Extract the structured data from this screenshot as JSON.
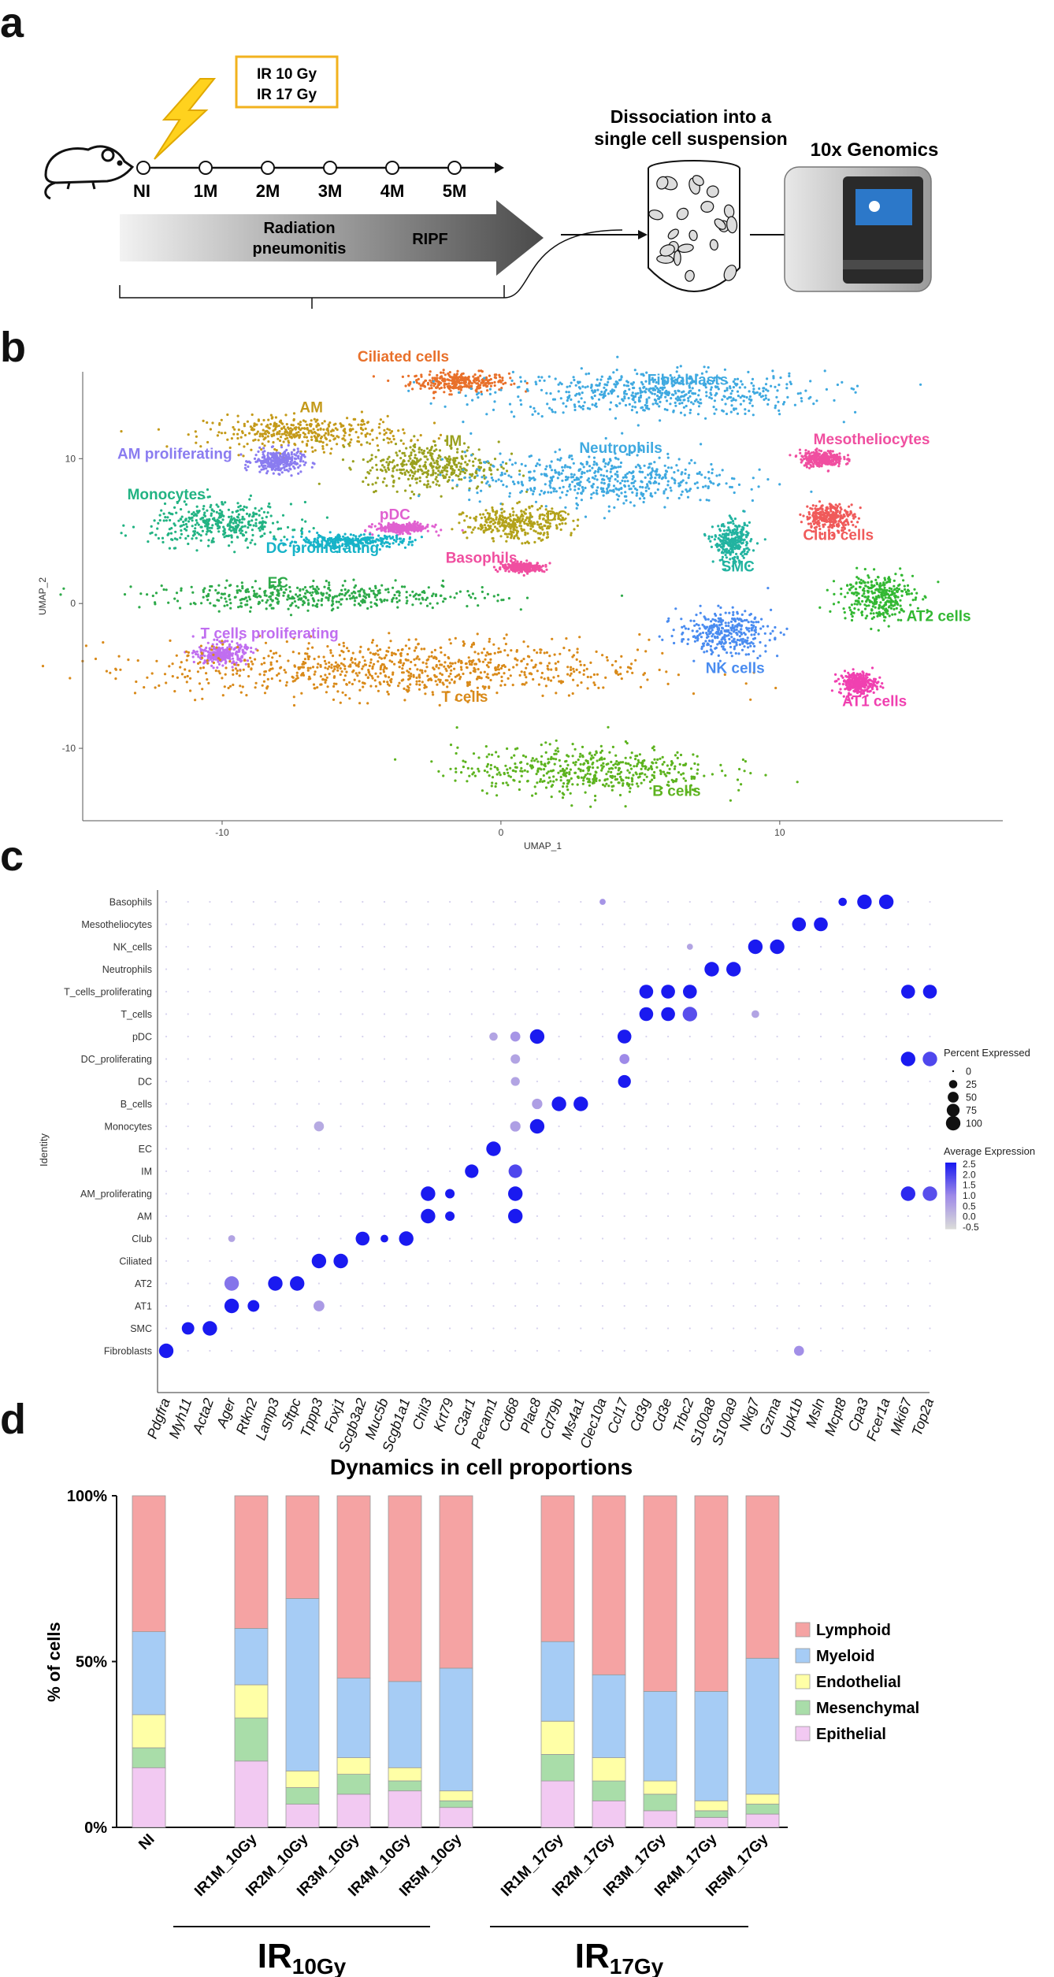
{
  "panels": [
    "a",
    "b",
    "c",
    "d"
  ],
  "panel_a": {
    "doses": [
      "IR 10 Gy",
      "IR 17 Gy"
    ],
    "timeline": [
      "NI",
      "1M",
      "2M",
      "3M",
      "4M",
      "5M"
    ],
    "arrow_texts": [
      "Radiation",
      "pneumonitis",
      "RIPF"
    ],
    "dissociation": [
      "Dissociation into a",
      "single cell suspension"
    ],
    "platform": "10x Genomics"
  },
  "panel_b": {
    "chart_data": {
      "type": "scatter",
      "title": "",
      "xlabel": "UMAP_1",
      "ylabel": "UMAP_2",
      "xticks": [
        -10,
        0,
        10
      ],
      "yticks": [
        -10,
        0,
        10
      ],
      "xlim": [
        -15,
        18
      ],
      "ylim": [
        -15,
        16
      ],
      "clusters": [
        {
          "name": "Ciliated cells",
          "color": "#E8702A",
          "center": [
            -1.5,
            15.3
          ],
          "spread": [
            1.6,
            0.6
          ]
        },
        {
          "name": "Fibroblasts",
          "color": "#3FA9E0",
          "center": [
            5.5,
            14.5
          ],
          "spread": [
            5.5,
            1.4
          ]
        },
        {
          "name": "AM",
          "color": "#C49A1A",
          "center": [
            -7,
            11.8
          ],
          "spread": [
            3.2,
            1.0
          ]
        },
        {
          "name": "AM proliferating",
          "color": "#8A7CF0",
          "center": [
            -8.0,
            9.8
          ],
          "spread": [
            0.8,
            0.7
          ]
        },
        {
          "name": "IM",
          "color": "#9AA11F",
          "center": [
            -2.5,
            9.5
          ],
          "spread": [
            2.2,
            1.5
          ]
        },
        {
          "name": "Neutrophils",
          "color": "#3FA9E0",
          "center": [
            3.5,
            8.6
          ],
          "spread": [
            4.2,
            1.6
          ]
        },
        {
          "name": "Mesotheliocytes",
          "color": "#F04FA0",
          "center": [
            11.5,
            10.0
          ],
          "spread": [
            0.7,
            0.5
          ]
        },
        {
          "name": "Monocytes",
          "color": "#22B383",
          "center": [
            -10.0,
            5.5
          ],
          "spread": [
            2.3,
            1.3
          ]
        },
        {
          "name": "pDC",
          "color": "#E060D0",
          "center": [
            -3.5,
            5.2
          ],
          "spread": [
            0.9,
            0.3
          ]
        },
        {
          "name": "DC",
          "color": "#B3A21A",
          "center": [
            0.5,
            5.5
          ],
          "spread": [
            1.6,
            1.0
          ]
        },
        {
          "name": "Club cells",
          "color": "#F05A5A",
          "center": [
            11.8,
            6.0
          ],
          "spread": [
            0.8,
            0.8
          ]
        },
        {
          "name": "DC proliferating",
          "color": "#17B3C8",
          "center": [
            -5.5,
            4.3
          ],
          "spread": [
            2.0,
            0.4
          ]
        },
        {
          "name": "Basophils",
          "color": "#F04FA0",
          "center": [
            0.8,
            2.5
          ],
          "spread": [
            0.7,
            0.3
          ]
        },
        {
          "name": "SMC",
          "color": "#22B3A0",
          "center": [
            8.3,
            4.2
          ],
          "spread": [
            0.6,
            1.2
          ]
        },
        {
          "name": "EC",
          "color": "#2EAA4A",
          "center": [
            -6.5,
            0.5
          ],
          "spread": [
            5.5,
            0.8
          ]
        },
        {
          "name": "AT2 cells",
          "color": "#33B833",
          "center": [
            13.5,
            0.5
          ],
          "spread": [
            1.2,
            1.5
          ]
        },
        {
          "name": "T cells proliferating",
          "color": "#C06EF0",
          "center": [
            -10.0,
            -3.5
          ],
          "spread": [
            0.8,
            0.7
          ]
        },
        {
          "name": "NK cells",
          "color": "#4A8CF0",
          "center": [
            8.0,
            -2.0
          ],
          "spread": [
            1.5,
            1.3
          ]
        },
        {
          "name": "T cells",
          "color": "#D98A1A",
          "center": [
            -3.5,
            -4.5
          ],
          "spread": [
            8.0,
            1.8
          ]
        },
        {
          "name": "AT1 cells",
          "color": "#F040B0",
          "center": [
            12.8,
            -5.5
          ],
          "spread": [
            0.6,
            0.7
          ]
        },
        {
          "name": "B cells",
          "color": "#5DB31F",
          "center": [
            3.0,
            -11.5
          ],
          "spread": [
            4.2,
            1.5
          ]
        }
      ]
    }
  },
  "panel_c": {
    "chart_data": {
      "type": "dotplot",
      "ylabel": "Identity",
      "genes": [
        "Pdgfra",
        "Myh11",
        "Acta2",
        "Ager",
        "Rtkn2",
        "Lamp3",
        "Sftpc",
        "Tppp3",
        "Foxj1",
        "Scgb3a2",
        "Muc5b",
        "Scgb1a1",
        "Chil3",
        "Krt79",
        "C3ar1",
        "Pecam1",
        "Cd68",
        "Plac8",
        "Cd79b",
        "Ms4a1",
        "Clec10a",
        "Ccl17",
        "Cd3g",
        "Cd3e",
        "Trbc2",
        "S100a8",
        "S100a9",
        "Nkg7",
        "Gzma",
        "Upk1b",
        "Msln",
        "Mcpt8",
        "Cpa3",
        "Fcer1a",
        "Mki67",
        "Top2a"
      ],
      "identities": [
        "Basophils",
        "Mesotheliocytes",
        "NK_cells",
        "Neutrophils",
        "T_cells_proliferating",
        "T_cells",
        "pDC",
        "DC_proliferating",
        "DC",
        "B_cells",
        "Monocytes",
        "EC",
        "IM",
        "AM_proliferating",
        "AM",
        "Club",
        "Ciliated",
        "AT2",
        "AT1",
        "SMC",
        "Fibroblasts"
      ],
      "dots": [
        {
          "identity": "Basophils",
          "gene": "Mcpt8",
          "pct": 25,
          "avg": 2.5
        },
        {
          "identity": "Basophils",
          "gene": "Cpa3",
          "pct": 100,
          "avg": 2.5
        },
        {
          "identity": "Basophils",
          "gene": "Fcer1a",
          "pct": 100,
          "avg": 2.5
        },
        {
          "identity": "Basophils",
          "gene": "Clec10a",
          "pct": 10,
          "avg": 0.8
        },
        {
          "identity": "Mesotheliocytes",
          "gene": "Upk1b",
          "pct": 90,
          "avg": 2.5
        },
        {
          "identity": "Mesotheliocytes",
          "gene": "Msln",
          "pct": 90,
          "avg": 2.5
        },
        {
          "identity": "NK_cells",
          "gene": "Nkg7",
          "pct": 100,
          "avg": 2.5
        },
        {
          "identity": "NK_cells",
          "gene": "Gzma",
          "pct": 100,
          "avg": 2.5
        },
        {
          "identity": "NK_cells",
          "gene": "Trbc2",
          "pct": 10,
          "avg": 0.5
        },
        {
          "identity": "Neutrophils",
          "gene": "S100a8",
          "pct": 100,
          "avg": 2.5
        },
        {
          "identity": "Neutrophils",
          "gene": "S100a9",
          "pct": 100,
          "avg": 2.5
        },
        {
          "identity": "T_cells_proliferating",
          "gene": "Cd3g",
          "pct": 90,
          "avg": 2.5
        },
        {
          "identity": "T_cells_proliferating",
          "gene": "Cd3e",
          "pct": 90,
          "avg": 2.5
        },
        {
          "identity": "T_cells_proliferating",
          "gene": "Trbc2",
          "pct": 90,
          "avg": 2.5
        },
        {
          "identity": "T_cells_proliferating",
          "gene": "Mki67",
          "pct": 90,
          "avg": 2.5
        },
        {
          "identity": "T_cells_proliferating",
          "gene": "Top2a",
          "pct": 90,
          "avg": 2.5
        },
        {
          "identity": "T_cells",
          "gene": "Cd3g",
          "pct": 90,
          "avg": 2.5
        },
        {
          "identity": "T_cells",
          "gene": "Cd3e",
          "pct": 90,
          "avg": 2.5
        },
        {
          "identity": "T_cells",
          "gene": "Trbc2",
          "pct": 100,
          "avg": 1.8
        },
        {
          "identity": "T_cells",
          "gene": "Nkg7",
          "pct": 20,
          "avg": 0.5
        },
        {
          "identity": "pDC",
          "gene": "Plac8",
          "pct": 100,
          "avg": 2.5
        },
        {
          "identity": "pDC",
          "gene": "Ccl17",
          "pct": 90,
          "avg": 2.5
        },
        {
          "identity": "pDC",
          "gene": "Cd68",
          "pct": 40,
          "avg": 0.8
        },
        {
          "identity": "pDC",
          "gene": "Pecam1",
          "pct": 25,
          "avg": 0.5
        },
        {
          "identity": "DC_proliferating",
          "gene": "Mki67",
          "pct": 100,
          "avg": 2.5
        },
        {
          "identity": "DC_proliferating",
          "gene": "Top2a",
          "pct": 100,
          "avg": 1.9
        },
        {
          "identity": "DC_proliferating",
          "gene": "Ccl17",
          "pct": 40,
          "avg": 1.0
        },
        {
          "identity": "DC_proliferating",
          "gene": "Cd68",
          "pct": 35,
          "avg": 0.5
        },
        {
          "identity": "DC",
          "gene": "Ccl17",
          "pct": 75,
          "avg": 2.5
        },
        {
          "identity": "DC",
          "gene": "Cd68",
          "pct": 30,
          "avg": 0.5
        },
        {
          "identity": "B_cells",
          "gene": "Cd79b",
          "pct": 100,
          "avg": 2.5
        },
        {
          "identity": "B_cells",
          "gene": "Ms4a1",
          "pct": 100,
          "avg": 2.5
        },
        {
          "identity": "B_cells",
          "gene": "Plac8",
          "pct": 45,
          "avg": 0.6
        },
        {
          "identity": "Monocytes",
          "gene": "Plac8",
          "pct": 100,
          "avg": 2.5
        },
        {
          "identity": "Monocytes",
          "gene": "Cd68",
          "pct": 45,
          "avg": 0.6
        },
        {
          "identity": "Monocytes",
          "gene": "Tppp3",
          "pct": 40,
          "avg": 0.4
        },
        {
          "identity": "EC",
          "gene": "Pecam1",
          "pct": 100,
          "avg": 2.5
        },
        {
          "identity": "IM",
          "gene": "C3ar1",
          "pct": 85,
          "avg": 2.5
        },
        {
          "identity": "IM",
          "gene": "Cd68",
          "pct": 85,
          "avg": 1.9
        },
        {
          "identity": "AM_proliferating",
          "gene": "Chil3",
          "pct": 100,
          "avg": 2.5
        },
        {
          "identity": "AM_proliferating",
          "gene": "Krt79",
          "pct": 35,
          "avg": 2.5
        },
        {
          "identity": "AM_proliferating",
          "gene": "Cd68",
          "pct": 100,
          "avg": 2.5
        },
        {
          "identity": "AM_proliferating",
          "gene": "Mki67",
          "pct": 100,
          "avg": 2.3
        },
        {
          "identity": "AM_proliferating",
          "gene": "Top2a",
          "pct": 100,
          "avg": 1.8
        },
        {
          "identity": "AM",
          "gene": "Chil3",
          "pct": 100,
          "avg": 2.5
        },
        {
          "identity": "AM",
          "gene": "Krt79",
          "pct": 35,
          "avg": 2.5
        },
        {
          "identity": "AM",
          "gene": "Cd68",
          "pct": 100,
          "avg": 2.5
        },
        {
          "identity": "Club",
          "gene": "Scgb3a2",
          "pct": 90,
          "avg": 2.5
        },
        {
          "identity": "Club",
          "gene": "Muc5b",
          "pct": 20,
          "avg": 2.5
        },
        {
          "identity": "Club",
          "gene": "Scgb1a1",
          "pct": 100,
          "avg": 2.5
        },
        {
          "identity": "Club",
          "gene": "Ager",
          "pct": 15,
          "avg": 0.5
        },
        {
          "identity": "Ciliated",
          "gene": "Tppp3",
          "pct": 100,
          "avg": 2.5
        },
        {
          "identity": "Ciliated",
          "gene": "Foxj1",
          "pct": 100,
          "avg": 2.5
        },
        {
          "identity": "AT2",
          "gene": "Ager",
          "pct": 100,
          "avg": 1.3
        },
        {
          "identity": "AT2",
          "gene": "Lamp3",
          "pct": 100,
          "avg": 2.5
        },
        {
          "identity": "AT2",
          "gene": "Sftpc",
          "pct": 100,
          "avg": 2.5
        },
        {
          "identity": "AT1",
          "gene": "Ager",
          "pct": 100,
          "avg": 2.5
        },
        {
          "identity": "AT1",
          "gene": "Rtkn2",
          "pct": 60,
          "avg": 2.5
        },
        {
          "identity": "AT1",
          "gene": "Tppp3",
          "pct": 50,
          "avg": 0.7
        },
        {
          "identity": "SMC",
          "gene": "Myh11",
          "pct": 70,
          "avg": 2.5
        },
        {
          "identity": "SMC",
          "gene": "Acta2",
          "pct": 100,
          "avg": 2.5
        },
        {
          "identity": "Fibroblasts",
          "gene": "Pdgfra",
          "pct": 100,
          "avg": 2.5
        },
        {
          "identity": "Fibroblasts",
          "gene": "Upk1b",
          "pct": 40,
          "avg": 0.9
        }
      ],
      "legend": {
        "pct_title": "Percent Expressed",
        "pct_values": [
          0,
          25,
          50,
          75,
          100
        ],
        "avg_title": "Average Expression",
        "avg_values": [
          "2.5",
          "2.0",
          "1.5",
          "1.0",
          "0.5",
          "0.0",
          "-0.5"
        ],
        "avg_range": [
          -0.5,
          2.5
        ]
      },
      "colors": {
        "low": "#D9D9D9",
        "high": "#1A1AF0"
      }
    }
  },
  "panel_d": {
    "chart_data": {
      "type": "bar",
      "stacked": true,
      "title": "Dynamics in cell proportions",
      "ylabel": "% of cells",
      "yticks": [
        "0%",
        "50%",
        "100%"
      ],
      "ylim": [
        0,
        100
      ],
      "categories": [
        "NI",
        "IR1M_10Gy",
        "IR2M_10Gy",
        "IR3M_10Gy",
        "IR4M_10Gy",
        "IR5M_10Gy",
        "IR1M_17Gy",
        "IR2M_17Gy",
        "IR3M_17Gy",
        "IR4M_17Gy",
        "IR5M_17Gy"
      ],
      "series": [
        {
          "name": "Epithelial",
          "color": "#F2C9F2",
          "values": [
            18,
            20,
            7,
            10,
            11,
            6,
            14,
            8,
            5,
            3,
            4
          ]
        },
        {
          "name": "Mesenchymal",
          "color": "#A9DDA9",
          "values": [
            6,
            13,
            5,
            6,
            3,
            2,
            8,
            6,
            5,
            2,
            3
          ]
        },
        {
          "name": "Endothelial",
          "color": "#FFFFA6",
          "values": [
            10,
            10,
            5,
            5,
            4,
            3,
            10,
            7,
            4,
            3,
            3
          ]
        },
        {
          "name": "Myeloid",
          "color": "#A6CCF5",
          "values": [
            25,
            17,
            52,
            24,
            26,
            37,
            24,
            25,
            27,
            33,
            41
          ]
        },
        {
          "name": "Lymphoid",
          "color": "#F5A3A3",
          "values": [
            41,
            40,
            31,
            55,
            56,
            52,
            44,
            54,
            59,
            59,
            49
          ]
        }
      ],
      "legend_order": [
        "Lymphoid",
        "Myeloid",
        "Endothelial",
        "Mesenchymal",
        "Epithelial"
      ],
      "groups": [
        {
          "label_main": "IR",
          "label_sub": "10Gy"
        },
        {
          "label_main": "IR",
          "label_sub": "17Gy"
        }
      ]
    }
  }
}
